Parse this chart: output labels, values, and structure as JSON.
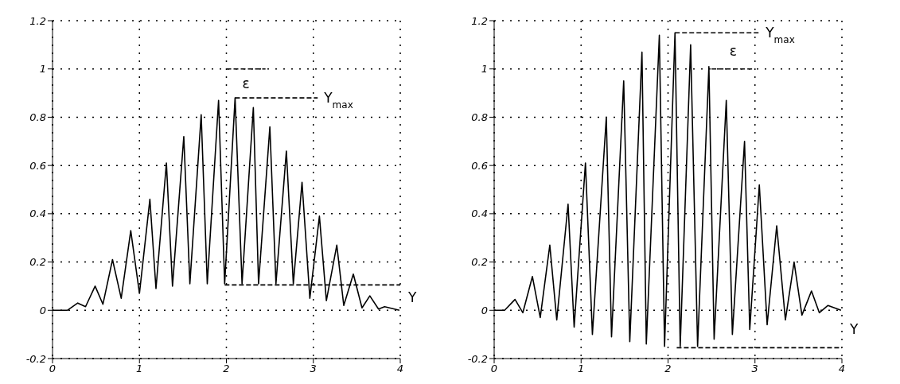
{
  "chart_data": [
    {
      "type": "line",
      "grid": true,
      "marker": "none",
      "xlim": [
        0,
        4
      ],
      "xticks": [
        0,
        1,
        2,
        3,
        4
      ],
      "ylim": [
        -0.2,
        1.2
      ],
      "yticks": [
        -0.2,
        0,
        0.2,
        0.4,
        0.6,
        0.8,
        1,
        1.2
      ],
      "series": [
        {
          "color": "#000000",
          "x": [
            0,
            0.17,
            0.29,
            0.38,
            0.49,
            0.58,
            0.69,
            0.79,
            0.9,
            1.0,
            1.12,
            1.19,
            1.31,
            1.38,
            1.51,
            1.58,
            1.71,
            1.78,
            1.91,
            1.98,
            2.1,
            2.18,
            2.31,
            2.37,
            2.5,
            2.57,
            2.69,
            2.77,
            2.87,
            2.96,
            3.07,
            3.15,
            3.27,
            3.35,
            3.46,
            3.56,
            3.65,
            3.75,
            3.82,
            3.99
          ],
          "values": [
            0,
            0,
            0.03,
            0.015,
            0.1,
            0.025,
            0.21,
            0.05,
            0.33,
            0.07,
            0.46,
            0.09,
            0.61,
            0.1,
            0.72,
            0.11,
            0.81,
            0.11,
            0.87,
            0.11,
            0.88,
            0.11,
            0.84,
            0.11,
            0.76,
            0.11,
            0.66,
            0.11,
            0.53,
            0.05,
            0.39,
            0.04,
            0.27,
            0.02,
            0.15,
            0.01,
            0.06,
            0.005,
            0.015,
            0
          ]
        },
        {
          "color": "#000000",
          "line_style": "dashed",
          "x": [
            2.0,
            2.45
          ],
          "values": [
            1.0,
            1.0
          ]
        },
        {
          "color": "#000000",
          "line_style": "dashed",
          "x": [
            2.1,
            3.05
          ],
          "values": [
            0.88,
            0.88
          ]
        },
        {
          "color": "#000000",
          "line_style": "dashed",
          "x": [
            1.98,
            4
          ],
          "values": [
            0.105,
            0.105
          ]
        }
      ],
      "annotations": [
        "ε",
        "Y$_{max}$",
        "Y"
      ]
    },
    {
      "type": "line",
      "grid": true,
      "marker": "none",
      "xlim": [
        0,
        4
      ],
      "xticks": [
        0,
        1,
        2,
        3,
        4
      ],
      "ylim": [
        -0.2,
        1.2
      ],
      "yticks": [
        -0.2,
        0,
        0.2,
        0.4,
        0.6,
        0.8,
        1,
        1.2
      ],
      "series": [
        {
          "color": "#000000",
          "x": [
            0,
            0.12,
            0.24,
            0.33,
            0.44,
            0.53,
            0.64,
            0.72,
            0.85,
            0.92,
            1.05,
            1.13,
            1.29,
            1.35,
            1.49,
            1.56,
            1.7,
            1.75,
            1.9,
            1.96,
            2.08,
            2.14,
            2.26,
            2.34,
            2.47,
            2.53,
            2.67,
            2.74,
            2.88,
            2.94,
            3.05,
            3.14,
            3.25,
            3.35,
            3.45,
            3.54,
            3.65,
            3.74,
            3.84,
            3.99
          ],
          "values": [
            0,
            0,
            0.045,
            -0.01,
            0.14,
            -0.03,
            0.27,
            -0.04,
            0.44,
            -0.07,
            0.61,
            -0.1,
            0.8,
            -0.11,
            0.95,
            -0.13,
            1.07,
            -0.14,
            1.14,
            -0.15,
            1.15,
            -0.15,
            1.1,
            -0.15,
            1.01,
            -0.12,
            0.87,
            -0.1,
            0.7,
            -0.08,
            0.52,
            -0.06,
            0.35,
            -0.04,
            0.2,
            -0.02,
            0.08,
            -0.01,
            0.02,
            0
          ]
        },
        {
          "color": "#000000",
          "line_style": "dashed",
          "x": [
            2.5,
            3.0
          ],
          "values": [
            1.0,
            1.0
          ]
        },
        {
          "color": "#000000",
          "line_style": "dashed",
          "x": [
            2.08,
            3.05
          ],
          "values": [
            1.15,
            1.15
          ]
        },
        {
          "color": "#000000",
          "line_style": "dashed",
          "x": [
            2.1,
            4
          ],
          "values": [
            -0.155,
            -0.155
          ]
        }
      ],
      "annotations": [
        "ε",
        "Y$_{max}$",
        "Y"
      ]
    }
  ]
}
